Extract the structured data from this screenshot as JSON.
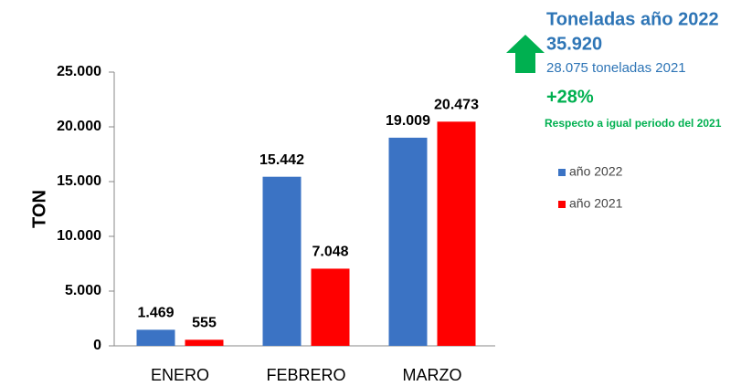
{
  "chart_data": {
    "type": "bar",
    "ylabel": "TON",
    "categories": [
      "ENERO",
      "FEBRERO",
      "MARZO"
    ],
    "series": [
      {
        "name": "año 2022",
        "color": "#3b73c4",
        "values": [
          1469,
          15442,
          19009
        ],
        "value_labels": [
          "1.469",
          "15.442",
          "19.009"
        ]
      },
      {
        "name": "año 2021",
        "color": "#ff0000",
        "values": [
          555,
          7048,
          20473
        ],
        "value_labels": [
          "555",
          "7.048",
          "20.473"
        ]
      }
    ],
    "ylim": [
      0,
      25000
    ],
    "yticks": [
      0,
      {
        "value": 5000,
        "label": "5.000"
      },
      {
        "value": 10000,
        "label": "10.000"
      },
      {
        "value": 15000,
        "label": "15.000"
      },
      {
        "value": 20000,
        "label": "20.000"
      },
      {
        "value": 25000,
        "label": "25.000"
      }
    ],
    "legend": "right",
    "annotations": {
      "title": "Toneladas año 2022",
      "total": "35.920",
      "previous": "28.075 toneladas 2021",
      "change": "+28%",
      "note": "Respecto a igual periodo del 2021"
    }
  }
}
